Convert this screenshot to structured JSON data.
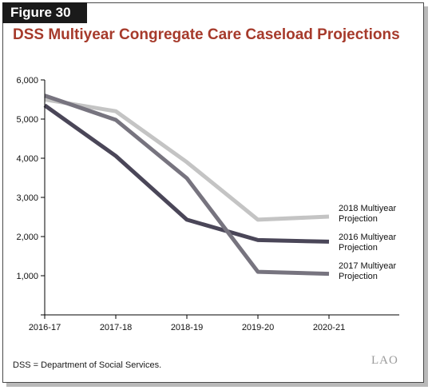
{
  "figure_label": "Figure 30",
  "footnote": "DSS = Department of Social Services.",
  "logo_text": "LAO",
  "chart_data": {
    "type": "line",
    "title": "DSS Multiyear Congregate Care Caseload Projections",
    "xlabel": "",
    "ylabel": "",
    "categories": [
      "2016-17",
      "2017-18",
      "2018-19",
      "2019-20",
      "2020-21"
    ],
    "ylim": [
      0,
      6000
    ],
    "yticks": [
      0,
      1000,
      2000,
      3000,
      4000,
      5000,
      6000
    ],
    "ytick_labels": [
      "",
      "1,000",
      "2,000",
      "3,000",
      "4,000",
      "5,000",
      "6,000"
    ],
    "grid": false,
    "series": [
      {
        "name": "2018 Multiyear Projection",
        "label_lines": [
          "2018 Multiyear",
          "Projection"
        ],
        "color": "#c4c4c4",
        "values": [
          5500,
          5200,
          3900,
          2430,
          2510
        ]
      },
      {
        "name": "2016 Multiyear Projection",
        "label_lines": [
          "2016 Multiyear",
          "Projection"
        ],
        "color": "#4a4658",
        "values": [
          5350,
          4060,
          2430,
          1910,
          1870
        ]
      },
      {
        "name": "2017 Multiyear Projection",
        "label_lines": [
          "2017 Multiyear",
          "Projection"
        ],
        "color": "#77747f",
        "values": [
          5600,
          4980,
          3490,
          1100,
          1050
        ]
      }
    ]
  }
}
